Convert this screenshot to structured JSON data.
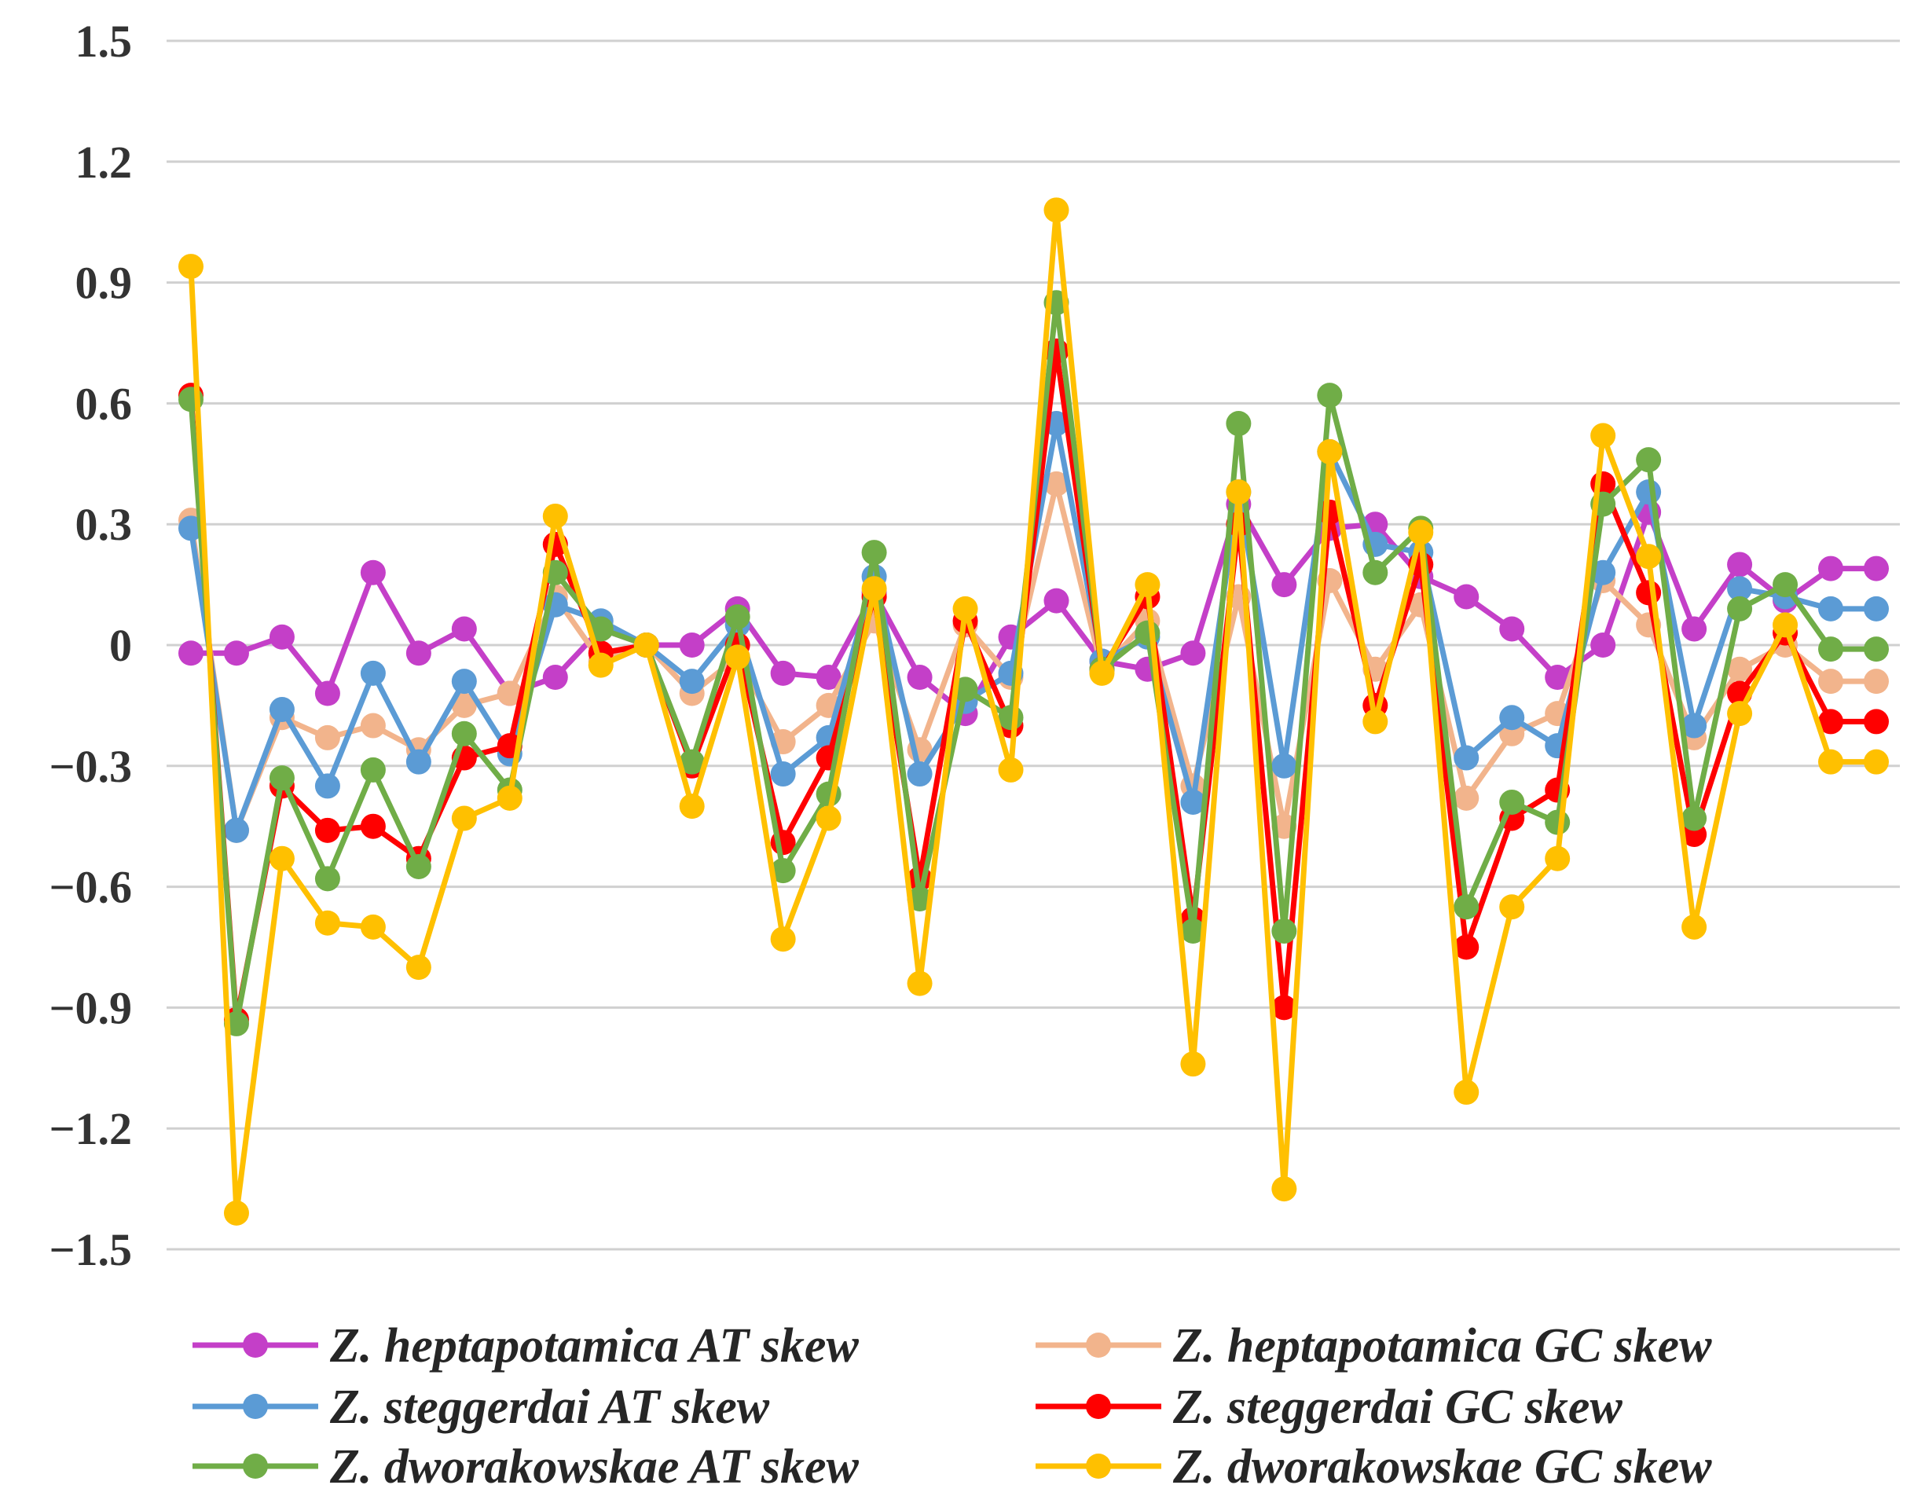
{
  "chart_data": {
    "type": "line",
    "title": "",
    "xlabel": "",
    "ylabel": "",
    "ylim": [
      -1.5,
      1.5
    ],
    "yticks": [
      1.5,
      1.2,
      0.9,
      0.6,
      0.3,
      0,
      -0.3,
      -0.6,
      -0.9,
      -1.2,
      -1.5
    ],
    "ytick_labels": [
      "1.5",
      "1.2",
      "0.9",
      "0.6",
      "0.3",
      "0",
      "−0.3",
      "−0.6",
      "−0.9",
      "−1.2",
      "−1.5"
    ],
    "grid": true,
    "legend_position": "bottom",
    "n_points": 38,
    "series": [
      {
        "name": "Z. heptapotamica AT skew",
        "color": "#c43fc8",
        "values": [
          -0.02,
          -0.02,
          0.02,
          -0.12,
          0.18,
          -0.02,
          0.04,
          -0.12,
          -0.08,
          0.04,
          0.0,
          0.0,
          0.09,
          -0.07,
          -0.08,
          0.13,
          -0.08,
          -0.17,
          0.02,
          0.11,
          -0.04,
          -0.06,
          -0.02,
          0.35,
          0.15,
          0.29,
          0.3,
          0.17,
          0.12,
          0.04,
          -0.08,
          0.0,
          0.33,
          0.04,
          0.2,
          0.11,
          0.19,
          0.19
        ]
      },
      {
        "name": "Z. heptapotamica GC skew",
        "color": "#f2b48c",
        "values": [
          0.31,
          -0.46,
          -0.18,
          -0.23,
          -0.2,
          -0.26,
          -0.15,
          -0.12,
          0.12,
          -0.04,
          0.0,
          -0.12,
          -0.03,
          -0.24,
          -0.15,
          0.06,
          -0.26,
          0.05,
          -0.08,
          0.4,
          -0.06,
          0.06,
          -0.35,
          0.12,
          -0.45,
          0.16,
          -0.06,
          0.1,
          -0.38,
          -0.22,
          -0.17,
          0.16,
          0.05,
          -0.23,
          -0.06,
          0.0,
          -0.09,
          -0.09
        ]
      },
      {
        "name": "Z. steggerdai AT skew",
        "color": "#5b9bd5",
        "values": [
          0.29,
          -0.46,
          -0.16,
          -0.35,
          -0.07,
          -0.29,
          -0.09,
          -0.27,
          0.1,
          0.06,
          0.0,
          -0.09,
          0.05,
          -0.32,
          -0.23,
          0.17,
          -0.32,
          -0.14,
          -0.07,
          0.55,
          -0.04,
          0.02,
          -0.39,
          0.38,
          -0.3,
          0.48,
          0.25,
          0.23,
          -0.28,
          -0.18,
          -0.25,
          0.18,
          0.38,
          -0.2,
          0.14,
          0.12,
          0.09,
          0.09
        ]
      },
      {
        "name": "Z. steggerdai GC skew",
        "color": "#ff0000",
        "values": [
          0.62,
          -0.93,
          -0.35,
          -0.46,
          -0.45,
          -0.53,
          -0.28,
          -0.25,
          0.25,
          -0.02,
          0.0,
          -0.3,
          0.0,
          -0.49,
          -0.28,
          0.12,
          -0.58,
          0.06,
          -0.2,
          0.73,
          -0.06,
          0.12,
          -0.68,
          0.3,
          -0.9,
          0.33,
          -0.15,
          0.2,
          -0.75,
          -0.43,
          -0.36,
          0.4,
          0.13,
          -0.47,
          -0.12,
          0.03,
          -0.19,
          -0.19
        ]
      },
      {
        "name": "Z. dworakowskae AT skew",
        "color": "#70ad47",
        "values": [
          0.61,
          -0.94,
          -0.33,
          -0.58,
          -0.31,
          -0.55,
          -0.22,
          -0.36,
          0.18,
          0.04,
          0.0,
          -0.29,
          0.07,
          -0.56,
          -0.37,
          0.23,
          -0.63,
          -0.11,
          -0.18,
          0.85,
          -0.06,
          0.03,
          -0.71,
          0.55,
          -0.71,
          0.62,
          0.18,
          0.29,
          -0.65,
          -0.39,
          -0.44,
          0.35,
          0.46,
          -0.43,
          0.09,
          0.15,
          -0.01,
          -0.01
        ]
      },
      {
        "name": "Z. dworakowskae GC skew",
        "color": "#ffc000",
        "values": [
          0.94,
          -1.41,
          -0.53,
          -0.69,
          -0.7,
          -0.8,
          -0.43,
          -0.38,
          0.32,
          -0.05,
          0.0,
          -0.4,
          -0.03,
          -0.73,
          -0.43,
          0.14,
          -0.84,
          0.09,
          -0.31,
          1.08,
          -0.07,
          0.15,
          -1.04,
          0.38,
          -1.35,
          0.48,
          -0.19,
          0.28,
          -1.11,
          -0.65,
          -0.53,
          0.52,
          0.22,
          -0.7,
          -0.17,
          0.05,
          -0.29,
          -0.29
        ]
      }
    ]
  }
}
